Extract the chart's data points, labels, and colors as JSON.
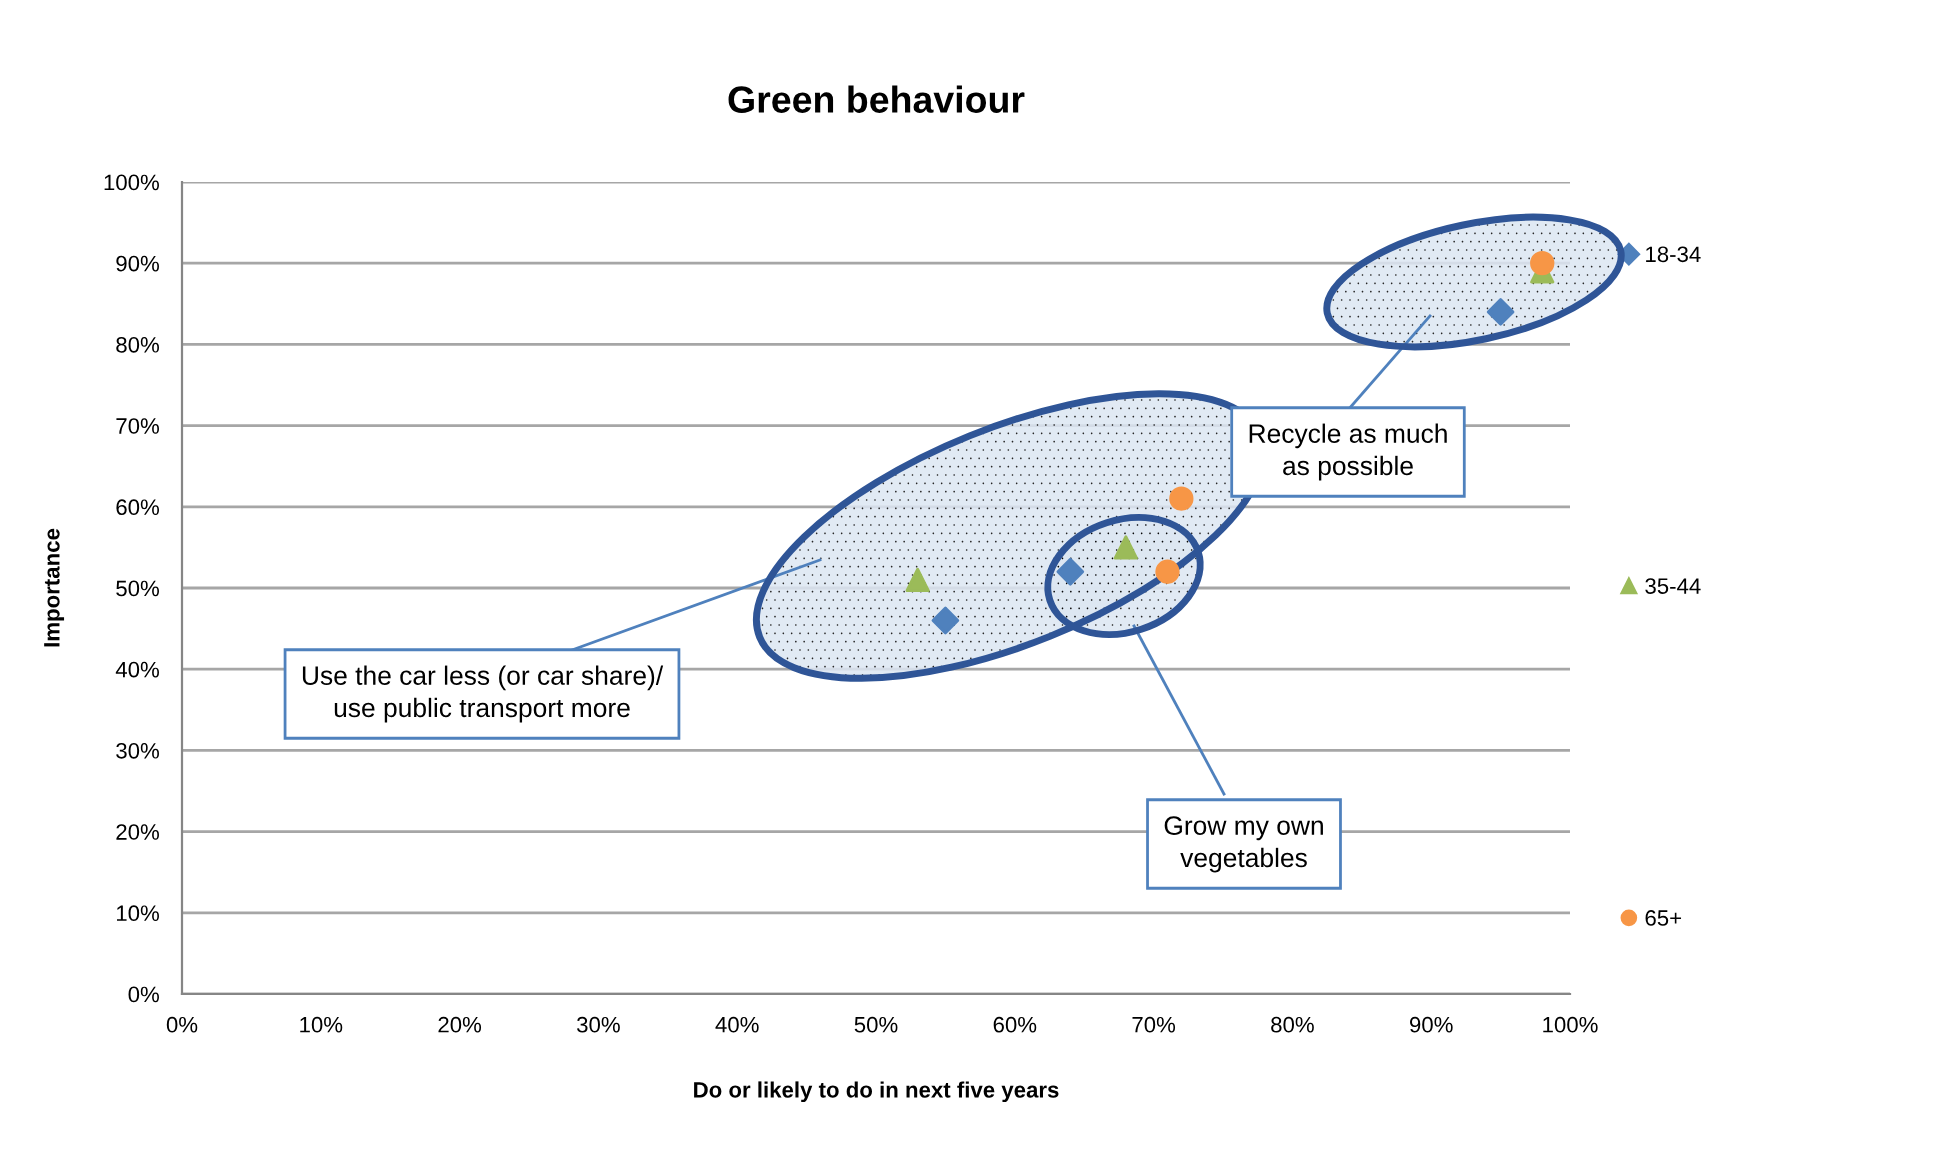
{
  "chart_data": {
    "type": "scatter",
    "title": "Green behaviour",
    "xlabel": "Do or likely to do in next five years",
    "ylabel": "Importance",
    "series": [
      {
        "name": "18-34",
        "color": "#4f81bd",
        "marker": "diamond",
        "x": [
          55,
          64,
          95
        ],
        "values": [
          46,
          52,
          84
        ]
      },
      {
        "name": "35-44",
        "color": "#9bbb59",
        "marker": "triangle",
        "x": [
          53,
          68,
          98
        ],
        "values": [
          51,
          55,
          89
        ]
      },
      {
        "name": "65+",
        "color": "#f79646",
        "marker": "circle",
        "x": [
          72,
          71,
          98
        ],
        "values": [
          61,
          52,
          90
        ]
      }
    ],
    "xlim": [
      0,
      100
    ],
    "ylim": [
      0,
      100
    ],
    "xticks": [
      {
        "value": 0,
        "label": "0%"
      },
      {
        "value": 10,
        "label": "10%"
      },
      {
        "value": 20,
        "label": "20%"
      },
      {
        "value": 30,
        "label": "30%"
      },
      {
        "value": 40,
        "label": "40%"
      },
      {
        "value": 50,
        "label": "50%"
      },
      {
        "value": 60,
        "label": "60%"
      },
      {
        "value": 70,
        "label": "70%"
      },
      {
        "value": 80,
        "label": "80%"
      },
      {
        "value": 90,
        "label": "90%"
      },
      {
        "value": 100,
        "label": "100%"
      }
    ],
    "yticks": [
      {
        "value": 0,
        "label": "0%"
      },
      {
        "value": 10,
        "label": "10%"
      },
      {
        "value": 20,
        "label": "20%"
      },
      {
        "value": 30,
        "label": "30%"
      },
      {
        "value": 40,
        "label": "40%"
      },
      {
        "value": 50,
        "label": "50%"
      },
      {
        "value": 60,
        "label": "60%"
      },
      {
        "value": 70,
        "label": "70%"
      },
      {
        "value": 80,
        "label": "80%"
      },
      {
        "value": 90,
        "label": "90%"
      },
      {
        "value": 100,
        "label": "100%"
      }
    ],
    "grid": "y",
    "legend": "right",
    "annotations": [
      "Use the car less (or car share)/\nuse public transport more",
      "Grow my own\nvegetables",
      "Recycle as much\nas possible"
    ]
  }
}
